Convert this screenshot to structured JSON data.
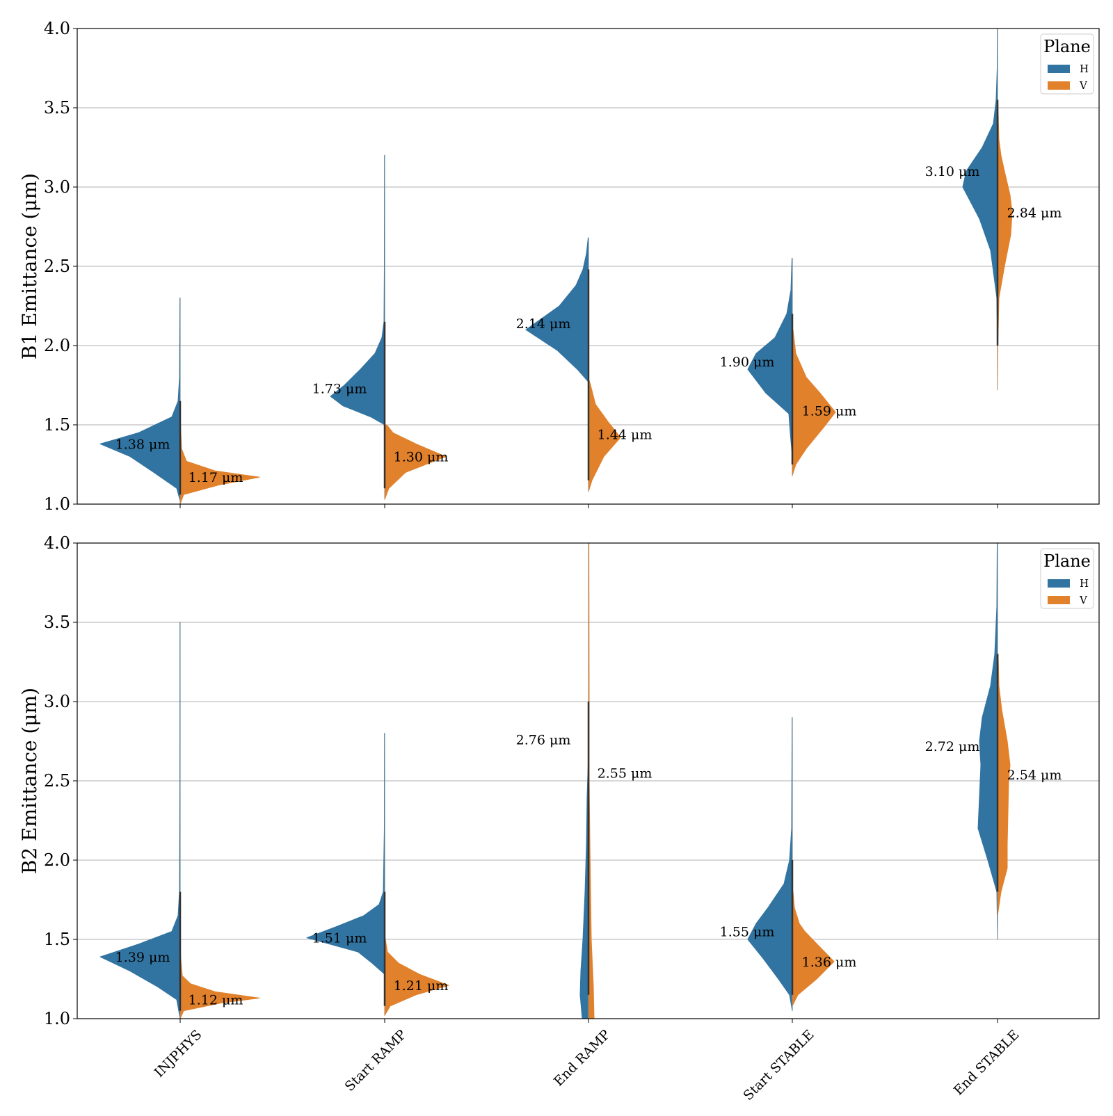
{
  "colors": {
    "H": "#3274a1",
    "V": "#e1812c",
    "grid": "#b0b0b0",
    "axis": "#000000"
  },
  "chart_data": [
    {
      "type": "violin",
      "ylabel": "B1 Emittance (μm)",
      "ylim": [
        1.0,
        4.0
      ],
      "yticks": [
        "1.0",
        "1.5",
        "2.0",
        "2.5",
        "3.0",
        "3.5",
        "4.0"
      ],
      "grid": "horizontal",
      "legend": {
        "title": "Plane",
        "position": "top-right",
        "entries": [
          "H",
          "V"
        ]
      },
      "categories": [
        "INJPHYS",
        "Start RAMP",
        "End RAMP",
        "Start STABLE",
        "End STABLE"
      ],
      "series": [
        {
          "name": "H",
          "medians": [
            1.38,
            1.73,
            2.14,
            1.9,
            3.1
          ],
          "median_labels": [
            "1.38 μm",
            "1.73 μm",
            "2.14 μm",
            "1.90 μm",
            "3.10 μm"
          ]
        },
        {
          "name": "V",
          "medians": [
            1.17,
            1.3,
            1.44,
            1.59,
            2.84
          ],
          "median_labels": [
            "1.17 μm",
            "1.30 μm",
            "1.44 μm",
            "1.59 μm",
            "2.84 μm"
          ]
        }
      ]
    },
    {
      "type": "violin",
      "ylabel": "B2 Emittance (μm)",
      "ylim": [
        1.0,
        4.0
      ],
      "yticks": [
        "1.0",
        "1.5",
        "2.0",
        "2.5",
        "3.0",
        "3.5",
        "4.0"
      ],
      "grid": "horizontal",
      "legend": {
        "title": "Plane",
        "position": "top-right",
        "entries": [
          "H",
          "V"
        ]
      },
      "categories": [
        "INJPHYS",
        "Start RAMP",
        "End RAMP",
        "Start STABLE",
        "End STABLE"
      ],
      "series": [
        {
          "name": "H",
          "medians": [
            1.39,
            1.51,
            2.76,
            1.55,
            2.72
          ],
          "median_labels": [
            "1.39 μm",
            "1.51 μm",
            "2.76 μm",
            "1.55 μm",
            "2.72 μm"
          ]
        },
        {
          "name": "V",
          "medians": [
            1.12,
            1.21,
            2.55,
            1.36,
            2.54
          ],
          "median_labels": [
            "1.12 μm",
            "1.21 μm",
            "2.55 μm",
            "1.36 μm",
            "2.54 μm"
          ]
        }
      ]
    }
  ]
}
